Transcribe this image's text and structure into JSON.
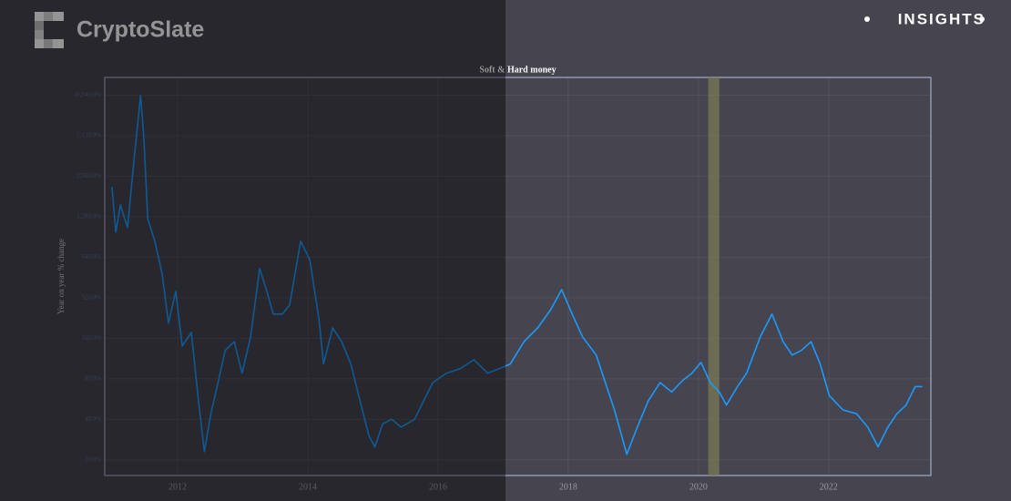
{
  "brand": "CryptoSlate",
  "badge": "INSIGHTS",
  "chart_data": {
    "type": "line",
    "title": "Soft & Hard money",
    "y_label": "Year on year % change",
    "scale": "log",
    "grid": true,
    "highlight_span": [
      2020.15,
      2020.32
    ],
    "highlight_color": "#7a7a55",
    "xlim": [
      2010.88,
      2023.57
    ],
    "xticks": [
      2012,
      2014,
      2016,
      2018,
      2020,
      2022
    ],
    "ylim": [
      15.3,
      13870
    ],
    "yticks": [
      {
        "value": 20,
        "label": "20.0%"
      },
      {
        "value": 40,
        "label": "40.0%"
      },
      {
        "value": 80,
        "label": "80.0%"
      },
      {
        "value": 160,
        "label": "160.0%"
      },
      {
        "value": 320,
        "label": "320.0%"
      },
      {
        "value": 640,
        "label": "640.0%"
      },
      {
        "value": 1280,
        "label": "1,280.0%"
      },
      {
        "value": 2560,
        "label": "2,560.0%"
      },
      {
        "value": 5120,
        "label": "5,120.0%"
      },
      {
        "value": 10240,
        "label": "10,240.0%"
      }
    ],
    "x": [
      2010.99,
      2011.05,
      2011.12,
      2011.23,
      2011.33,
      2011.43,
      2011.48,
      2011.54,
      2011.65,
      2011.76,
      2011.86,
      2011.97,
      2012.07,
      2012.21,
      2012.32,
      2012.41,
      2012.51,
      2012.62,
      2012.73,
      2012.87,
      2012.99,
      2013.12,
      2013.26,
      2013.37,
      2013.47,
      2013.61,
      2013.72,
      2013.89,
      2014.03,
      2014.17,
      2014.24,
      2014.38,
      2014.52,
      2014.66,
      2014.8,
      2014.94,
      2015.03,
      2015.15,
      2015.29,
      2015.43,
      2015.64,
      2015.78,
      2015.92,
      2016.13,
      2016.34,
      2016.55,
      2016.76,
      2016.94,
      2017.11,
      2017.32,
      2017.53,
      2017.73,
      2017.9,
      2018.06,
      2018.22,
      2018.43,
      2018.57,
      2018.71,
      2018.9,
      2019.06,
      2019.23,
      2019.41,
      2019.59,
      2019.76,
      2019.9,
      2020.04,
      2020.18,
      2020.32,
      2020.43,
      2020.6,
      2020.74,
      2020.95,
      2021.13,
      2021.3,
      2021.44,
      2021.58,
      2021.73,
      2021.87,
      2022.01,
      2022.22,
      2022.43,
      2022.6,
      2022.76,
      2022.91,
      2023.05,
      2023.19,
      2023.33,
      2023.44
    ],
    "series": [
      {
        "color": "#1a9bff",
        "values": [
          2140,
          982,
          1566,
          1062,
          3416,
          10160,
          5040,
          1240,
          840,
          487,
          207,
          357,
          140,
          177,
          55,
          23,
          44,
          75,
          130,
          151,
          88,
          164,
          527,
          357,
          242,
          242,
          283,
          840,
          616,
          224,
          103,
          191,
          151,
          103,
          55,
          30,
          25,
          37,
          40,
          35,
          40,
          55,
          75,
          88,
          95,
          111,
          88,
          95,
          103,
          151,
          191,
          261,
          368,
          242,
          164,
          120,
          75,
          47,
          22,
          35,
          55,
          75,
          64,
          78,
          88,
          106,
          75,
          64,
          51,
          70,
          88,
          164,
          242,
          151,
          120,
          130,
          151,
          103,
          60,
          47,
          44,
          35,
          25,
          35,
          44,
          51,
          70,
          70
        ]
      }
    ]
  }
}
